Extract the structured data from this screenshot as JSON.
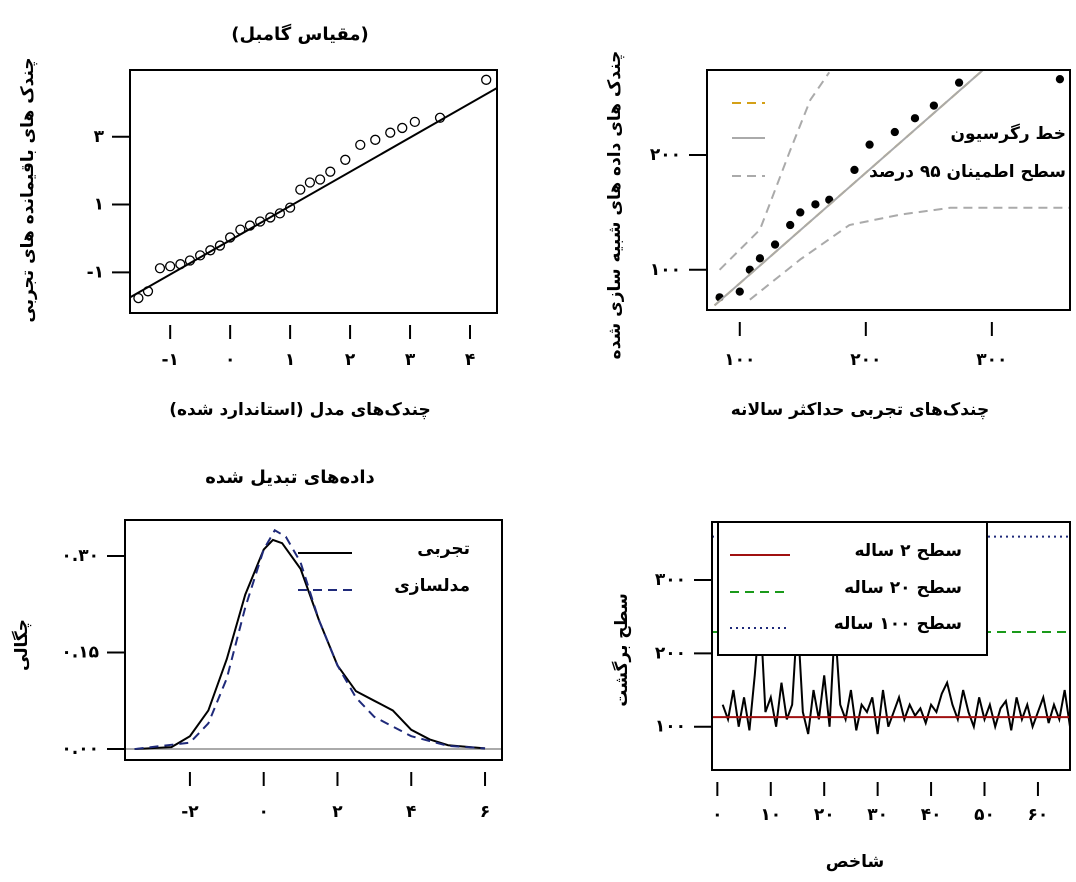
{
  "chart_data": [
    {
      "type": "scatter",
      "title": "(مقیاس گامبل)",
      "xlabel": "چندک‌های مدل (استاندارد شده)",
      "ylabel": "چندک های باقیمانده های تجربی",
      "xlim": [
        -1.67,
        4.45
      ],
      "ylim": [
        -2.2,
        4.97
      ],
      "xticks": [
        {
          "value": -1,
          "label": "-۱"
        },
        {
          "value": 0,
          "label": "۰"
        },
        {
          "value": 1,
          "label": "۱"
        },
        {
          "value": 2,
          "label": "۲"
        },
        {
          "value": 3,
          "label": "۳"
        },
        {
          "value": 4,
          "label": "۴"
        }
      ],
      "yticks": [
        {
          "value": -1,
          "label": "-۱"
        },
        {
          "value": 1,
          "label": "۱"
        },
        {
          "value": 3,
          "label": "۳"
        }
      ],
      "series": [
        {
          "style": "points",
          "marker": "open",
          "color": "#000000",
          "x": [
            -1.53,
            -1.37,
            -1.17,
            -1,
            -0.83,
            -0.67,
            -0.5,
            -0.33,
            -0.17,
            0,
            0.17,
            0.33,
            0.5,
            0.67,
            0.83,
            1,
            1.17,
            1.33,
            1.5,
            1.67,
            1.92,
            2.17,
            2.42,
            2.67,
            2.87,
            3.08,
            3.5,
            4.27
          ],
          "values": [
            -1.76,
            -1.56,
            -0.88,
            -0.82,
            -0.76,
            -0.65,
            -0.5,
            -0.35,
            -0.21,
            0.03,
            0.26,
            0.38,
            0.5,
            0.62,
            0.74,
            0.91,
            1.44,
            1.65,
            1.74,
            1.97,
            2.32,
            2.76,
            2.91,
            3.12,
            3.26,
            3.44,
            3.56,
            4.68
          ]
        },
        {
          "style": "line",
          "color": "#000000",
          "x": [
            -1.67,
            4.45
          ],
          "values": [
            -1.74,
            4.44
          ]
        }
      ]
    },
    {
      "type": "scatter",
      "xlabel": "چندک‌های تجربی حداکثر سالانه",
      "ylabel": "چندک های داده های شبیه سازی شده",
      "xlim": [
        74,
        362
      ],
      "ylim": [
        65,
        274
      ],
      "xticks": [
        {
          "value": 100,
          "label": "۱۰۰"
        },
        {
          "value": 200,
          "label": "۲۰۰"
        },
        {
          "value": 300,
          "label": "۳۰۰"
        }
      ],
      "yticks": [
        {
          "value": 100,
          "label": "۱۰۰"
        },
        {
          "value": 200,
          "label": "۲۰۰"
        }
      ],
      "series": [
        {
          "style": "points",
          "marker": "filled",
          "color": "#000000",
          "x": [
            84,
            100,
            108,
            116,
            128,
            140,
            148,
            160,
            171,
            191,
            203,
            223,
            239,
            254,
            274,
            354
          ],
          "values": [
            76,
            81,
            100,
            110,
            122,
            139,
            150,
            157,
            161,
            187,
            209,
            220,
            232,
            243,
            263,
            266
          ]
        },
        {
          "style": "dashed",
          "color": "#d4a017",
          "in_legend": true,
          "x": [
            80,
            294
          ],
          "values": [
            69,
            275
          ]
        },
        {
          "name": "خط رگرسیون",
          "style": "line",
          "color": "#aaaaaa",
          "x": [
            80,
            294
          ],
          "values": [
            69,
            275
          ]
        },
        {
          "name": "سطح اطمینان ۹۵ درصد",
          "style": "dashed",
          "color": "#aaaaaa",
          "x": [
            84,
            116,
            140,
            156,
            171
          ],
          "values": [
            100,
            135,
            204,
            248,
            272
          ]
        },
        {
          "style": "dashed",
          "color": "#aaaaaa",
          "x": [
            108,
            148,
            187,
            227,
            267,
            362
          ],
          "values": [
            74,
            109,
            139,
            148,
            154,
            154
          ]
        }
      ]
    },
    {
      "type": "line",
      "title": "داده‌های تبدیل شده",
      "ylabel": "چگالی",
      "xlim": [
        -3.76,
        6.46
      ],
      "ylim": [
        -0.017,
        0.356
      ],
      "xticks": [
        {
          "value": -2,
          "label": "-۲"
        },
        {
          "value": 0,
          "label": "۰"
        },
        {
          "value": 2,
          "label": "۲"
        },
        {
          "value": 4,
          "label": "۴"
        },
        {
          "value": 6,
          "label": "۶"
        }
      ],
      "yticks": [
        {
          "value": 0,
          "label": "۰.۰۰"
        },
        {
          "value": 0.15,
          "label": "۰.۱۵"
        },
        {
          "value": 0.3,
          "label": "۰.۳۰"
        }
      ],
      "series": [
        {
          "name": "تجربی",
          "style": "line",
          "color": "#000000",
          "x": [
            -3.5,
            -2.5,
            -2,
            -1.5,
            -1,
            -0.5,
            0,
            0.25,
            0.5,
            1,
            1.5,
            2,
            2.5,
            3,
            3.5,
            4,
            4.5,
            5,
            6
          ],
          "values": [
            0,
            0.003,
            0.02,
            0.06,
            0.14,
            0.24,
            0.31,
            0.325,
            0.32,
            0.28,
            0.2,
            0.13,
            0.09,
            0.075,
            0.06,
            0.03,
            0.015,
            0.006,
            0.001
          ]
        },
        {
          "name": "مدلسازی",
          "style": "dashed",
          "color": "#1f2a7a",
          "x": [
            -3.5,
            -2,
            -1.5,
            -1,
            -0.5,
            0,
            0.3,
            0.6,
            1,
            1.5,
            2,
            2.5,
            3,
            3.5,
            4,
            5,
            6
          ],
          "values": [
            0,
            0.01,
            0.04,
            0.11,
            0.22,
            0.31,
            0.34,
            0.33,
            0.29,
            0.2,
            0.13,
            0.08,
            0.05,
            0.035,
            0.02,
            0.005,
            0.001
          ]
        }
      ]
    },
    {
      "type": "line",
      "xlabel": "شاخص",
      "ylabel": "سطح برگشت",
      "xlim": [
        -1,
        66
      ],
      "ylim": [
        41,
        379
      ],
      "xticks": [
        {
          "value": 0,
          "label": "۰"
        },
        {
          "value": 10,
          "label": "۱۰"
        },
        {
          "value": 20,
          "label": "۲۰"
        },
        {
          "value": 30,
          "label": "۳۰"
        },
        {
          "value": 40,
          "label": "۴۰"
        },
        {
          "value": 50,
          "label": "۵۰"
        },
        {
          "value": 60,
          "label": "۶۰"
        }
      ],
      "yticks": [
        {
          "value": 100,
          "label": "۱۰۰"
        },
        {
          "value": 200,
          "label": "۲۰۰"
        },
        {
          "value": 300,
          "label": "۳۰۰"
        }
      ],
      "series": [
        {
          "style": "line",
          "color": "#000000",
          "x": [
            1,
            2,
            3,
            4,
            5,
            6,
            7,
            8,
            9,
            10,
            11,
            12,
            13,
            14,
            15,
            16,
            17,
            18,
            19,
            20,
            21,
            22,
            23,
            24,
            25,
            26,
            27,
            28,
            29,
            30,
            31,
            32,
            33,
            34,
            35,
            36,
            37,
            38,
            39,
            40,
            41,
            42,
            43,
            44,
            45,
            46,
            47,
            48,
            49,
            50,
            51,
            52,
            53,
            54,
            55,
            56,
            57,
            58,
            59,
            60,
            61,
            62,
            63,
            64,
            65,
            66
          ],
          "values": [
            130,
            110,
            150,
            100,
            140,
            95,
            170,
            260,
            120,
            140,
            100,
            160,
            110,
            130,
            250,
            120,
            90,
            150,
            110,
            170,
            100,
            240,
            130,
            110,
            150,
            95,
            130,
            120,
            140,
            90,
            150,
            100,
            120,
            140,
            110,
            130,
            115,
            125,
            105,
            130,
            120,
            145,
            160,
            130,
            110,
            150,
            120,
            100,
            140,
            110,
            130,
            100,
            125,
            135,
            95,
            140,
            110,
            130,
            100,
            120,
            140,
            105,
            130,
            110,
            150,
            100
          ]
        },
        {
          "name": "سطح ۲ ساله",
          "style": "hline",
          "color": "#a01010",
          "value": 113
        },
        {
          "name": "سطح ۲۰ ساله",
          "style": "hline-dashed",
          "color": "#1a9a1a",
          "value": 229
        },
        {
          "name": "سطح ۱۰۰ ساله",
          "style": "hline-dotted",
          "color": "#1f2a7a",
          "value": 359
        }
      ],
      "legend_box": true
    }
  ]
}
